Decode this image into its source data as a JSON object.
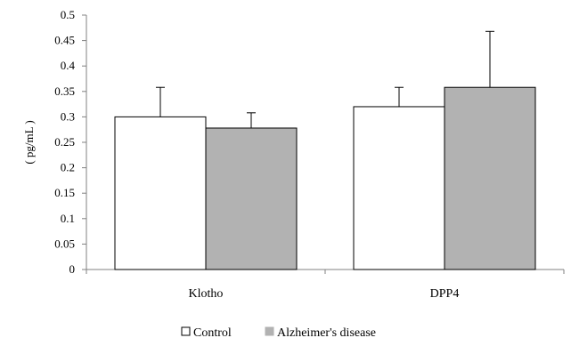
{
  "chart_data": {
    "type": "bar",
    "categories": [
      "Klotho",
      "DPP4"
    ],
    "series": [
      {
        "name": "Control",
        "values": [
          0.3,
          0.32
        ],
        "error": [
          0.058,
          0.038
        ],
        "color": "#ffffff"
      },
      {
        "name": "Alzheimer's disease",
        "values": [
          0.278,
          0.358
        ],
        "error": [
          0.03,
          0.11
        ],
        "color": "#b2b2b2"
      }
    ],
    "ylabel": "( pg/mL )",
    "xlabel": "",
    "title": "",
    "ylim": [
      0,
      0.5
    ],
    "yticks": [
      "0",
      "0.05",
      "0.1",
      "0.15",
      "0.2",
      "0.25",
      "0.3",
      "0.35",
      "0.4",
      "0.45",
      "0.5"
    ],
    "grid": false,
    "legend_position": "bottom"
  }
}
